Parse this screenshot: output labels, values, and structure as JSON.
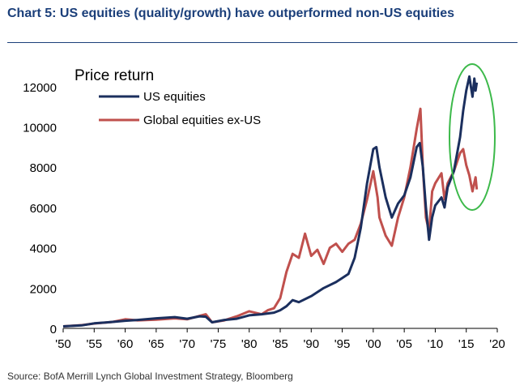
{
  "title": "Chart 5: US equities (quality/growth) have outperformed non-US equities",
  "source": "Source: BofA Merrill Lynch Global Investment Strategy, Bloomberg",
  "colors": {
    "us": "#1b2f5e",
    "global": "#c0504d",
    "highlight": "#3cb94a",
    "axis": "#000000",
    "title": "#1b3f7a"
  },
  "chart_data": {
    "type": "line",
    "inner_title": "Price return",
    "x_ticks": [
      "'50",
      "'55",
      "'60",
      "'65",
      "'70",
      "'75",
      "'80",
      "'85",
      "'90",
      "'95",
      "'00",
      "'05",
      "'10",
      "'15",
      "'20"
    ],
    "x_tick_values": [
      1950,
      1955,
      1960,
      1965,
      1970,
      1975,
      1980,
      1985,
      1990,
      1995,
      2000,
      2005,
      2010,
      2015,
      2020
    ],
    "y_ticks": [
      "0",
      "2000",
      "4000",
      "6000",
      "8000",
      "10000",
      "12000"
    ],
    "y_tick_values": [
      0,
      2000,
      4000,
      6000,
      8000,
      10000,
      12000
    ],
    "xlim": [
      1950,
      2020
    ],
    "ylim": [
      0,
      13000
    ],
    "legend": [
      "US equities",
      "Global equities ex-US"
    ],
    "series": [
      {
        "name": "US equities",
        "points": [
          [
            1950,
            100
          ],
          [
            1953,
            150
          ],
          [
            1955,
            250
          ],
          [
            1958,
            320
          ],
          [
            1960,
            380
          ],
          [
            1962,
            420
          ],
          [
            1965,
            500
          ],
          [
            1968,
            560
          ],
          [
            1970,
            480
          ],
          [
            1972,
            600
          ],
          [
            1973,
            580
          ],
          [
            1974,
            300
          ],
          [
            1976,
            420
          ],
          [
            1978,
            480
          ],
          [
            1980,
            650
          ],
          [
            1982,
            700
          ],
          [
            1984,
            780
          ],
          [
            1985,
            900
          ],
          [
            1986,
            1100
          ],
          [
            1987,
            1400
          ],
          [
            1988,
            1300
          ],
          [
            1990,
            1600
          ],
          [
            1992,
            2000
          ],
          [
            1994,
            2300
          ],
          [
            1995,
            2500
          ],
          [
            1996,
            2700
          ],
          [
            1997,
            3500
          ],
          [
            1998,
            5000
          ],
          [
            1999,
            7200
          ],
          [
            2000,
            8900
          ],
          [
            2000.5,
            9000
          ],
          [
            2001,
            8000
          ],
          [
            2002,
            6500
          ],
          [
            2003,
            5500
          ],
          [
            2004,
            6200
          ],
          [
            2005,
            6600
          ],
          [
            2006,
            7500
          ],
          [
            2007,
            9000
          ],
          [
            2007.5,
            9200
          ],
          [
            2008,
            8000
          ],
          [
            2008.5,
            6000
          ],
          [
            2009,
            4400
          ],
          [
            2009.5,
            5500
          ],
          [
            2010,
            6100
          ],
          [
            2011,
            6500
          ],
          [
            2011.5,
            6000
          ],
          [
            2012,
            7000
          ],
          [
            2013,
            7800
          ],
          [
            2014,
            9500
          ],
          [
            2014.5,
            10800
          ],
          [
            2015,
            11800
          ],
          [
            2015.5,
            12500
          ],
          [
            2016,
            11500
          ],
          [
            2016.3,
            12400
          ],
          [
            2016.5,
            11800
          ],
          [
            2016.7,
            12200
          ]
        ]
      },
      {
        "name": "Global equities ex-US",
        "points": [
          [
            1950,
            100
          ],
          [
            1953,
            160
          ],
          [
            1955,
            240
          ],
          [
            1958,
            320
          ],
          [
            1960,
            450
          ],
          [
            1962,
            400
          ],
          [
            1965,
            430
          ],
          [
            1968,
            500
          ],
          [
            1970,
            450
          ],
          [
            1972,
            620
          ],
          [
            1973,
            700
          ],
          [
            1974,
            300
          ],
          [
            1976,
            400
          ],
          [
            1978,
            600
          ],
          [
            1980,
            850
          ],
          [
            1982,
            700
          ],
          [
            1983,
            900
          ],
          [
            1984,
            1000
          ],
          [
            1985,
            1500
          ],
          [
            1986,
            2800
          ],
          [
            1987,
            3700
          ],
          [
            1988,
            3500
          ],
          [
            1989,
            4700
          ],
          [
            1990,
            3600
          ],
          [
            1991,
            3900
          ],
          [
            1992,
            3200
          ],
          [
            1993,
            4000
          ],
          [
            1994,
            4200
          ],
          [
            1995,
            3800
          ],
          [
            1996,
            4200
          ],
          [
            1997,
            4400
          ],
          [
            1998,
            5200
          ],
          [
            1999,
            6400
          ],
          [
            2000,
            7800
          ],
          [
            2000.7,
            6500
          ],
          [
            2001,
            5500
          ],
          [
            2002,
            4600
          ],
          [
            2003,
            4100
          ],
          [
            2004,
            5500
          ],
          [
            2005,
            6500
          ],
          [
            2006,
            8000
          ],
          [
            2007,
            9900
          ],
          [
            2007.6,
            10900
          ],
          [
            2008,
            8000
          ],
          [
            2008.5,
            5500
          ],
          [
            2009,
            4800
          ],
          [
            2009.5,
            6800
          ],
          [
            2010,
            7200
          ],
          [
            2011,
            7700
          ],
          [
            2011.5,
            6400
          ],
          [
            2012,
            7200
          ],
          [
            2013,
            7800
          ],
          [
            2014,
            8700
          ],
          [
            2014.5,
            8900
          ],
          [
            2015,
            8100
          ],
          [
            2015.5,
            7600
          ],
          [
            2016,
            6800
          ],
          [
            2016.5,
            7500
          ],
          [
            2016.7,
            6900
          ]
        ]
      }
    ]
  }
}
